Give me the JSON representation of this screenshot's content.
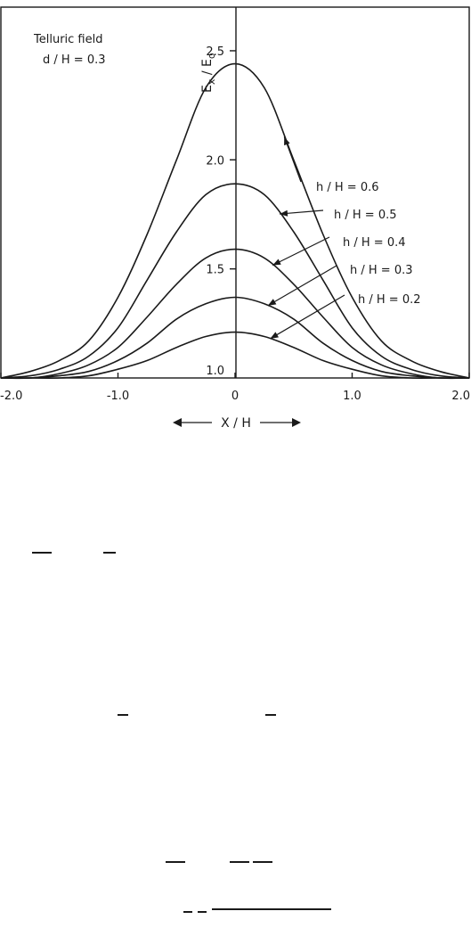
{
  "chart_data": {
    "type": "line",
    "title_lines": [
      "Telluric field",
      "d / H = 0.3"
    ],
    "xlabel": "X / H",
    "ylabel": "E",
    "ylabel_sub_x": "x",
    "ylabel_sub_0": "o",
    "xlim": [
      -2.0,
      2.0
    ],
    "ylim": [
      1.0,
      2.7
    ],
    "x_ticks": [
      {
        "value": -2.0,
        "label": "-2.0"
      },
      {
        "value": -1.0,
        "label": "-1.0"
      },
      {
        "value": 0,
        "label": "0"
      },
      {
        "value": 1.0,
        "label": "1.0"
      },
      {
        "value": 2.0,
        "label": "2.0"
      }
    ],
    "y_ticks": [
      {
        "value": 1.0,
        "label": "1.0"
      },
      {
        "value": 1.5,
        "label": "1.5"
      },
      {
        "value": 2.0,
        "label": "2.0"
      },
      {
        "value": 2.5,
        "label": "2.5"
      }
    ],
    "x": [
      -2.0,
      -1.75,
      -1.5,
      -1.25,
      -1.0,
      -0.75,
      -0.5,
      -0.25,
      0,
      0.25,
      0.5,
      0.75,
      1.0,
      1.25,
      1.5,
      1.75,
      2.0
    ],
    "series": [
      {
        "name": "h / H = 0.6",
        "values": [
          1.0,
          1.03,
          1.08,
          1.17,
          1.37,
          1.66,
          2.0,
          2.33,
          2.44,
          2.33,
          2.0,
          1.66,
          1.37,
          1.17,
          1.08,
          1.03,
          1.0
        ]
      },
      {
        "name": "h / H = 0.5",
        "values": [
          1.0,
          1.01,
          1.04,
          1.1,
          1.23,
          1.45,
          1.67,
          1.84,
          1.89,
          1.84,
          1.67,
          1.45,
          1.23,
          1.1,
          1.04,
          1.01,
          1.0
        ]
      },
      {
        "name": "h / H = 0.4",
        "values": [
          1.0,
          1.0,
          1.02,
          1.06,
          1.14,
          1.28,
          1.43,
          1.55,
          1.59,
          1.55,
          1.43,
          1.28,
          1.14,
          1.06,
          1.02,
          1.0,
          1.0
        ]
      },
      {
        "name": "h / H = 0.3",
        "values": [
          1.0,
          1.0,
          1.01,
          1.03,
          1.08,
          1.16,
          1.27,
          1.34,
          1.37,
          1.34,
          1.27,
          1.16,
          1.08,
          1.03,
          1.01,
          1.0,
          1.0
        ]
      },
      {
        "name": "h / H = 0.2",
        "values": [
          1.0,
          1.0,
          1.0,
          1.01,
          1.04,
          1.08,
          1.14,
          1.19,
          1.21,
          1.19,
          1.14,
          1.08,
          1.04,
          1.01,
          1.0,
          1.0,
          1.0
        ]
      }
    ],
    "grid": false,
    "legend": "inline labels with leader lines, right of the peak"
  },
  "colors": {
    "ink": "#1a1a1a",
    "paper": "#ffffff"
  }
}
